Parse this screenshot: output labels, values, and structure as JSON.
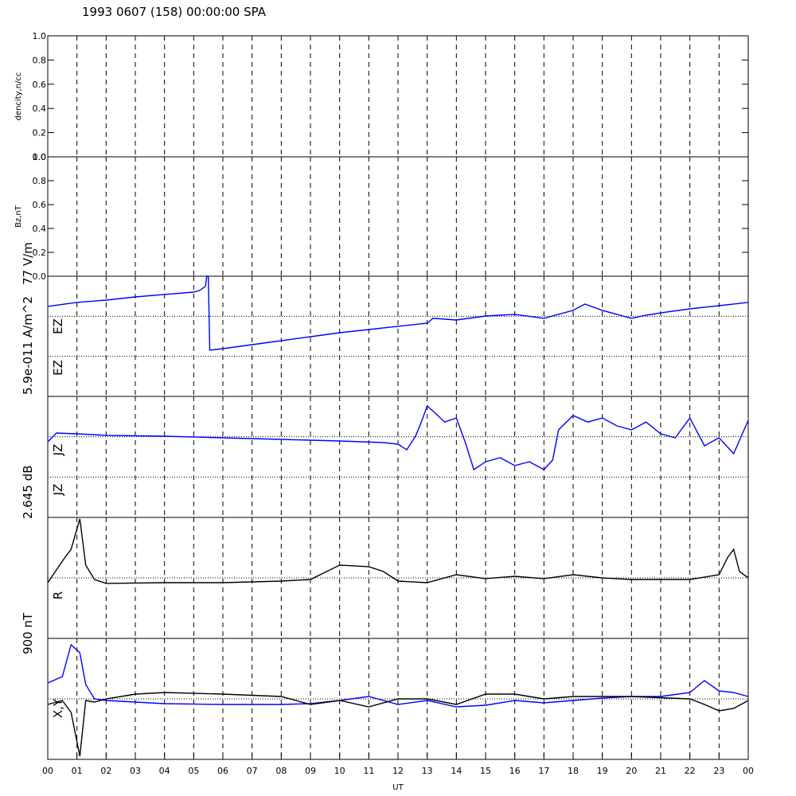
{
  "chart_data": [
    {
      "type": "line",
      "title": "1993 0607 (158) 00:00:00 SPA",
      "ylabel": "dencity,n/cc",
      "xlim": [
        0,
        24
      ],
      "ylim": [
        0,
        1
      ],
      "yticks": [
        {
          "value": 0,
          "label": "0.0"
        },
        0.2,
        0.4,
        0.6,
        0.8,
        {
          "value": 1,
          "label": "1.0"
        }
      ],
      "series": []
    },
    {
      "type": "line",
      "ylabel": "Bz,nT",
      "xlim": [
        0,
        24
      ],
      "ylim": [
        0,
        1
      ],
      "yticks": [
        {
          "value": 0,
          "label": "0.0"
        },
        0.2,
        0.4,
        0.6,
        0.8,
        {
          "value": 1,
          "label": "1.0"
        }
      ],
      "series": []
    },
    {
      "type": "line",
      "scale_label": "77 V/m",
      "labels": [
        "EZ",
        "EZ"
      ],
      "xlim": [
        0,
        24
      ],
      "ylim": [
        -77,
        77
      ],
      "series": [
        {
          "name": "EZ",
          "color": "#0000ff",
          "x": [
            0,
            1,
            2,
            3,
            4,
            5,
            5.2,
            5.4,
            5.45,
            5.5,
            5.55,
            6,
            7,
            8,
            9,
            10,
            11,
            12,
            13,
            13.2,
            14,
            15,
            16,
            17,
            18,
            18.4,
            19,
            20,
            20.5,
            21,
            22,
            23,
            24
          ],
          "values": [
            38.3,
            43.4,
            46.4,
            50.5,
            53.6,
            56.6,
            58.7,
            63.8,
            77,
            77,
            -17.8,
            -15.8,
            -10.7,
            -5.6,
            -0.5,
            4.6,
            8.7,
            12.8,
            16.8,
            23,
            20.9,
            26,
            28.1,
            23,
            33.2,
            41.3,
            33.2,
            23,
            27,
            30,
            35.2,
            39.3,
            43.4
          ]
        }
      ]
    },
    {
      "type": "line",
      "scale_label": "5.9e-011 A/m^2",
      "labels": [
        "JZ",
        "JZ"
      ],
      "xlim": [
        0,
        24
      ],
      "ylim": [
        -5.9e-11,
        5.9e-11
      ],
      "series": [
        {
          "name": "JZ",
          "color": "#0000ff",
          "x": [
            0,
            0.3,
            1,
            2,
            4,
            6,
            8,
            10,
            11.5,
            12,
            12.3,
            12.6,
            12.8,
            13,
            13.3,
            13.6,
            14,
            14.3,
            14.6,
            15,
            15.5,
            16,
            16.5,
            17,
            17.3,
            17.5,
            18,
            18.5,
            19,
            19.5,
            20,
            20.5,
            21,
            21.5,
            22,
            22.5,
            23,
            23.5,
            24
          ],
          "values": [
            1.47e-11,
            2.33e-11,
            2.25e-11,
            2.1e-11,
            2.02e-11,
            1.86e-11,
            1.71e-11,
            1.55e-11,
            1.4e-11,
            1.24e-11,
            7e-12,
            2.02e-11,
            3.4e-11,
            4.97e-11,
            4.2e-11,
            3.4e-11,
            3.8e-11,
            1.47e-11,
            -1.24e-11,
            -4.7e-12,
            -8e-13,
            -8.5e-12,
            -4.7e-12,
            -1.24e-11,
            -3.1e-12,
            2.64e-11,
            4.04e-11,
            3.4e-11,
            3.8e-11,
            3.03e-11,
            2.64e-11,
            3.4e-11,
            2.25e-11,
            1.86e-11,
            3.8e-11,
            1.09e-11,
            1.86e-11,
            3.1e-12,
            3.57e-11
          ]
        }
      ]
    },
    {
      "type": "line",
      "scale_label": "2.645 dB",
      "labels": [
        "R"
      ],
      "xlim": [
        0,
        24
      ],
      "ylim": [
        -2.645,
        2.645
      ],
      "series": [
        {
          "name": "R",
          "color": "#000000",
          "x": [
            0,
            0.5,
            0.8,
            1.1,
            1.3,
            1.6,
            2,
            4,
            6,
            8,
            9,
            10,
            11,
            11.5,
            12,
            13,
            14,
            15,
            16,
            17,
            18,
            19,
            20,
            22,
            23,
            23.3,
            23.5,
            23.7,
            24
          ],
          "values": [
            -0.21,
            0.73,
            1.25,
            2.58,
            0.56,
            -0.07,
            -0.24,
            -0.21,
            -0.21,
            -0.14,
            -0.07,
            0.56,
            0.49,
            0.28,
            -0.14,
            -0.21,
            0.14,
            -0.03,
            0.07,
            -0.03,
            0.14,
            0,
            -0.07,
            -0.07,
            0.14,
            0.9,
            1.25,
            0.28,
            0
          ]
        }
      ]
    },
    {
      "type": "line",
      "scale_label": "900 nT",
      "labels": [
        "X,Y"
      ],
      "xlim": [
        0,
        24
      ],
      "ylim": [
        -900,
        900
      ],
      "xlabel": "UT",
      "xticks": [
        {
          "value": 0,
          "label": "00"
        },
        {
          "value": 1,
          "label": "01"
        },
        {
          "value": 2,
          "label": "02"
        },
        {
          "value": 3,
          "label": "03"
        },
        {
          "value": 4,
          "label": "04"
        },
        {
          "value": 5,
          "label": "05"
        },
        {
          "value": 6,
          "label": "06"
        },
        {
          "value": 7,
          "label": "07"
        },
        {
          "value": 8,
          "label": "08"
        },
        {
          "value": 9,
          "label": "09"
        },
        10,
        11,
        12,
        13,
        14,
        15,
        16,
        17,
        18,
        19,
        20,
        21,
        22,
        23,
        {
          "value": 24,
          "label": "00"
        }
      ],
      "series": [
        {
          "name": "Y",
          "color": "#0000ff",
          "x": [
            0,
            0.5,
            0.8,
            1.1,
            1.3,
            1.6,
            2,
            3,
            4,
            6,
            8,
            9,
            10,
            11,
            12,
            13,
            14,
            15,
            16,
            17,
            18,
            19,
            20,
            21,
            22,
            22.5,
            23,
            23.5,
            24
          ],
          "values": [
            237,
            332,
            805,
            687,
            213,
            0,
            -24,
            -47,
            -71,
            -83,
            -83,
            -71,
            -24,
            36,
            -83,
            -24,
            -118,
            -95,
            -24,
            -59,
            -24,
            12,
            36,
            36,
            95,
            272,
            118,
            95,
            36
          ]
        },
        {
          "name": "X",
          "color": "#000000",
          "x": [
            0,
            0.5,
            0.8,
            1.1,
            1.3,
            1.6,
            2,
            3,
            4,
            6,
            8,
            9,
            10,
            11,
            12,
            13,
            14,
            15,
            16,
            17,
            18,
            20,
            22,
            22.5,
            23,
            23.5,
            24
          ],
          "values": [
            -83,
            -24,
            -201,
            -853,
            -24,
            -47,
            0,
            71,
            95,
            71,
            36,
            -83,
            -24,
            -118,
            0,
            0,
            -83,
            71,
            71,
            0,
            36,
            36,
            0,
            -83,
            -178,
            -142,
            -24
          ]
        }
      ]
    }
  ]
}
